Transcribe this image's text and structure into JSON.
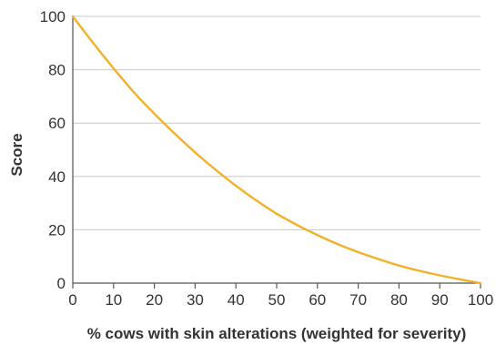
{
  "chart_data": {
    "type": "line",
    "title": "",
    "xlabel": "% cows with skin alterations (weighted for severity)",
    "ylabel": "Score",
    "xlim": [
      0,
      100
    ],
    "ylim": [
      0,
      100
    ],
    "x_ticks": [
      0,
      10,
      20,
      30,
      40,
      50,
      60,
      70,
      80,
      90,
      100
    ],
    "y_ticks": [
      0,
      20,
      40,
      60,
      80,
      100
    ],
    "grid": "horizontal",
    "legend": "none",
    "series": [
      {
        "color": "#f2b12a",
        "x": [
          0,
          5,
          10,
          15,
          20,
          25,
          30,
          35,
          40,
          45,
          50,
          55,
          60,
          65,
          70,
          75,
          80,
          85,
          90,
          95,
          100
        ],
        "y": [
          100,
          90,
          80.5,
          71.5,
          63.5,
          56,
          49,
          42.5,
          36.5,
          31,
          26,
          21.8,
          18,
          14.6,
          11.6,
          9,
          6.6,
          4.6,
          2.9,
          1.4,
          0
        ]
      }
    ]
  }
}
